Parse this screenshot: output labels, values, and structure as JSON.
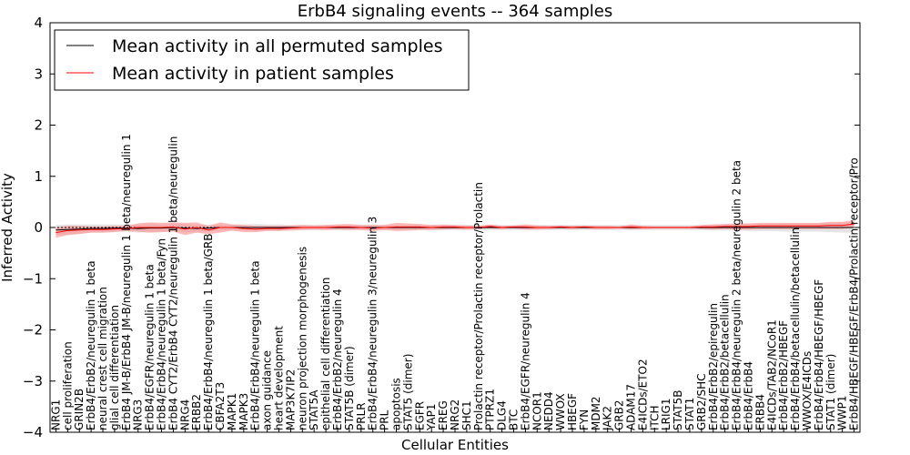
{
  "chart_data": {
    "type": "line",
    "title": "ErbB4 signaling events -- 364 samples",
    "xlabel": "Cellular Entities",
    "ylabel": "Inferred Activity",
    "ylim": [
      -4,
      4
    ],
    "yticks": [
      -4,
      -3,
      -2,
      -1,
      0,
      1,
      2,
      3,
      4
    ],
    "grid": false,
    "legend_position": "top-left",
    "categories": [
      "NRG1",
      "cell proliferation",
      "GRIN2B",
      "ErbB4/ErbB2/neuregulin 1 beta",
      "neural crest cell migration",
      "glial cell differentiation",
      "ErbB4 JM-B/ErbB4 JM-B/neuregulin 1 beta/neuregulin 1",
      "NRG3",
      "ErbB4/EGFR/neuregulin 1 beta",
      "ErbB4/ErbB4/neuregulin 1 beta/Fyn",
      "ErbB4 CYT2/ErbB4 CYT2/neuregulin 1 beta/neuregulin",
      "NRG4",
      "ERBB2",
      "ErbB4/ErbB4/neuregulin 1 beta/GRB",
      "CBFA2T3",
      "MAPK1",
      "MAPK3",
      "ErbB4/ErbB4/neuregulin 1 beta",
      "axon guidance",
      "heart development",
      "MAP3K7IP2",
      "neuron projection morphogenesis",
      "STAT5A",
      "epithelial cell differentiation",
      "ErbB4/ErbB2/neuregulin 4",
      "STAT5B (dimer)",
      "PRLR",
      "ErbB4/ErbB4/neuregulin 3/neuregulin 3",
      "PRL",
      "apoptosis",
      "STAT5 (dimer)",
      "EGFR",
      "YAP1",
      "EREG",
      "NRG2",
      "SHC1",
      "Prolactin receptor/Prolactin receptor/Prolactin",
      "PTPRZ1",
      "DLG4",
      "BTC",
      "ErbB4/EGFR/neuregulin 4",
      "NCOR1",
      "NEDD4",
      "WWOX",
      "HBEGF",
      "FYN",
      "MDM2",
      "JAK2",
      "GRB2",
      "ADAM17",
      "E4ICDs/ETO2",
      "ITCH",
      "LRIG1",
      "STAT5B",
      "STAT1",
      "GRB2/SHC",
      "ErbB4/ErbB2/epiregulin",
      "ErbB4/ErbB2/betacellulin",
      "ErbB4/ErbB4/neuregulin 2 beta/neuregulin 2 beta",
      "ErbB4/ErbB4",
      "ERBB4",
      "E4ICDs/TAB2/NCoR1",
      "ErbB4/ErbB2/HBEGF",
      "ErbB4/ErbB4/betacellulin/betacellulin",
      "WWOX/E4ICDs",
      "ErbB4/ErbB4/HBEGF/HBEGF",
      "STAT1 (dimer)",
      "WWP1",
      "ErbB4/HBEGF/HBEGF/ErbB4/Prolactin receptor/Pro"
    ],
    "series": [
      {
        "name": "Mean activity in all permuted samples",
        "color": "#000000",
        "values": [
          -0.05,
          -0.04,
          -0.03,
          -0.02,
          -0.02,
          -0.01,
          -0.01,
          -0.02,
          -0.01,
          -0.01,
          0.0,
          -0.01,
          -0.02,
          -0.01,
          0.0,
          0.0,
          0.0,
          0.0,
          0.0,
          0.0,
          0.0,
          0.0,
          0.0,
          0.0,
          0.0,
          0.0,
          0.0,
          0.0,
          0.0,
          0.0,
          0.0,
          0.0,
          0.0,
          0.0,
          0.0,
          0.0,
          0.0,
          0.0,
          0.0,
          0.0,
          0.0,
          0.0,
          0.0,
          0.0,
          0.0,
          0.0,
          0.0,
          0.0,
          0.0,
          0.0,
          0.0,
          0.0,
          0.0,
          0.0,
          0.0,
          0.0,
          0.0,
          0.0,
          0.0,
          0.0,
          0.0,
          0.0,
          0.0,
          0.0,
          0.0,
          0.0,
          0.0,
          0.0,
          0.0
        ],
        "band": [
          0.1,
          0.1,
          0.09,
          0.08,
          0.08,
          0.07,
          0.07,
          0.08,
          0.08,
          0.07,
          0.07,
          0.08,
          0.07,
          0.07,
          0.06,
          0.06,
          0.06,
          0.07,
          0.06,
          0.06,
          0.05,
          0.05,
          0.05,
          0.05,
          0.05,
          0.05,
          0.05,
          0.05,
          0.05,
          0.05,
          0.05,
          0.05,
          0.05,
          0.05,
          0.05,
          0.05,
          0.05,
          0.05,
          0.05,
          0.05,
          0.05,
          0.05,
          0.05,
          0.05,
          0.05,
          0.05,
          0.05,
          0.05,
          0.05,
          0.05,
          0.05,
          0.05,
          0.05,
          0.05,
          0.05,
          0.05,
          0.06,
          0.06,
          0.06,
          0.07,
          0.07,
          0.07,
          0.08,
          0.08,
          0.08,
          0.08,
          0.09,
          0.1,
          0.1
        ]
      },
      {
        "name": "Mean activity in patient samples",
        "color": "#ff0000",
        "values": [
          -0.1,
          -0.06,
          -0.05,
          -0.04,
          -0.04,
          -0.03,
          -0.02,
          0.0,
          0.0,
          0.0,
          0.01,
          -0.03,
          0.0,
          -0.05,
          0.0,
          0.0,
          -0.02,
          -0.03,
          -0.02,
          -0.02,
          -0.01,
          0.0,
          0.0,
          0.0,
          0.01,
          0.01,
          0.0,
          -0.01,
          0.0,
          0.01,
          0.01,
          0.01,
          0.0,
          0.01,
          0.01,
          0.0,
          0.0,
          0.02,
          0.0,
          0.01,
          0.01,
          0.0,
          0.0,
          0.01,
          0.0,
          0.01,
          0.0,
          0.0,
          0.0,
          0.01,
          0.0,
          0.0,
          0.0,
          0.0,
          0.0,
          0.01,
          0.01,
          0.02,
          0.02,
          0.02,
          0.03,
          0.03,
          0.03,
          0.03,
          0.03,
          0.03,
          0.04,
          0.04,
          0.07
        ],
        "band": [
          0.1,
          0.09,
          0.08,
          0.06,
          0.06,
          0.06,
          0.05,
          0.08,
          0.1,
          0.09,
          0.09,
          0.12,
          0.1,
          0.08,
          0.1,
          0.06,
          0.07,
          0.06,
          0.05,
          0.05,
          0.05,
          0.05,
          0.04,
          0.05,
          0.05,
          0.06,
          0.05,
          0.06,
          0.05,
          0.08,
          0.07,
          0.06,
          0.05,
          0.05,
          0.04,
          0.04,
          0.03,
          0.04,
          0.03,
          0.03,
          0.05,
          0.04,
          0.03,
          0.03,
          0.03,
          0.03,
          0.03,
          0.03,
          0.02,
          0.05,
          0.03,
          0.02,
          0.02,
          0.02,
          0.02,
          0.04,
          0.05,
          0.05,
          0.06,
          0.06,
          0.06,
          0.06,
          0.06,
          0.06,
          0.06,
          0.06,
          0.07,
          0.07,
          0.07
        ]
      }
    ]
  }
}
